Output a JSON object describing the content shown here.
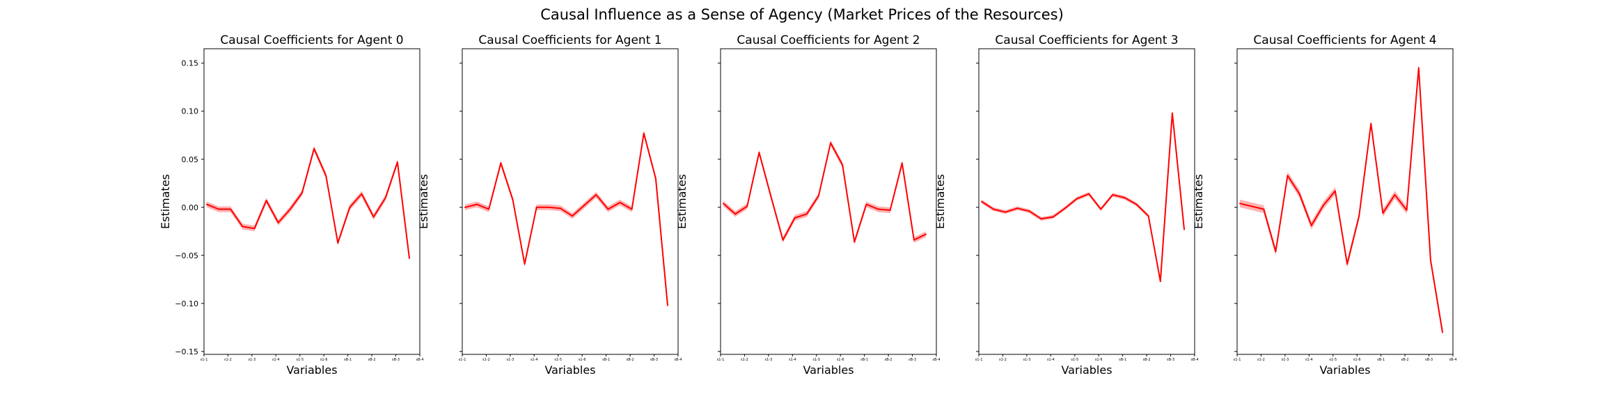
{
  "figure": {
    "title": "Causal Influence as a Sense of Agency (Market Prices of the Resources)"
  },
  "chart_data": [
    {
      "type": "line",
      "title": "Causal Coefficients for Agent 0",
      "xlabel": "Variables",
      "ylabel": "Estimates",
      "ylim": [
        -0.153,
        0.165
      ],
      "yticks": [
        "0.15",
        "0.10",
        "0.05",
        "0.00",
        "−0.05",
        "−0.10",
        "−0.15"
      ],
      "ytick_values": [
        0.15,
        0.1,
        0.05,
        0.0,
        -0.05,
        -0.1,
        -0.15
      ],
      "xtick_labels": [
        "s1-1",
        "s1-2",
        "s1-3",
        "s1-4",
        "s1-5",
        "s1-6",
        "sB-1",
        "sB-2",
        "sB-3",
        "sB-4"
      ],
      "color": "#ff0000",
      "series": [
        {
          "values": [
            0.003,
            -0.002,
            -0.002,
            -0.02,
            -0.022,
            0.007,
            -0.016,
            -0.002,
            0.015,
            0.061,
            0.033,
            -0.037,
            0.0,
            0.014,
            -0.01,
            0.01,
            0.047,
            -0.053
          ],
          "band": 0.003
        }
      ]
    },
    {
      "type": "line",
      "title": "Causal Coefficients for Agent 1",
      "xlabel": "Variables",
      "ylabel": "Estimates",
      "ylim": [
        -0.153,
        0.165
      ],
      "yticks": [],
      "ytick_values": [
        0.15,
        0.1,
        0.05,
        0.0,
        -0.05,
        -0.1,
        -0.15
      ],
      "xtick_labels": [
        "s1-1",
        "s1-2",
        "s1-3",
        "s1-4",
        "s1-5",
        "s1-6",
        "sB-1",
        "sB-2",
        "sB-3",
        "sB-4"
      ],
      "color": "#ff0000",
      "series": [
        {
          "values": [
            0.0,
            0.003,
            -0.002,
            0.046,
            0.008,
            -0.059,
            0.0,
            0.0,
            -0.001,
            -0.009,
            0.002,
            0.013,
            -0.002,
            0.005,
            -0.002,
            0.077,
            0.03,
            -0.102
          ],
          "band": 0.003
        }
      ]
    },
    {
      "type": "line",
      "title": "Causal Coefficients for Agent 2",
      "xlabel": "Variables",
      "ylabel": "Estimates",
      "ylim": [
        -0.153,
        0.165
      ],
      "yticks": [],
      "ytick_values": [
        0.15,
        0.1,
        0.05,
        0.0,
        -0.05,
        -0.1,
        -0.15
      ],
      "xtick_labels": [
        "s1-1",
        "s1-2",
        "s1-3",
        "s1-4",
        "s1-5",
        "s1-6",
        "sB-1",
        "sB-2",
        "sB-3",
        "sB-4"
      ],
      "color": "#ff0000",
      "series": [
        {
          "values": [
            0.004,
            -0.007,
            0.001,
            0.057,
            0.011,
            -0.034,
            -0.011,
            -0.007,
            0.012,
            0.067,
            0.044,
            -0.036,
            0.003,
            -0.002,
            -0.003,
            0.046,
            -0.034,
            -0.028
          ],
          "band": 0.003
        }
      ]
    },
    {
      "type": "line",
      "title": "Causal Coefficients for Agent 3",
      "xlabel": "Variables",
      "ylabel": "Estimates",
      "ylim": [
        -0.153,
        0.165
      ],
      "yticks": [],
      "ytick_values": [
        0.15,
        0.1,
        0.05,
        0.0,
        -0.05,
        -0.1,
        -0.15
      ],
      "xtick_labels": [
        "s1-1",
        "s1-2",
        "s1-3",
        "s1-4",
        "s1-5",
        "s1-6",
        "sB-1",
        "sB-2",
        "sB-3",
        "sB-4"
      ],
      "color": "#ff0000",
      "series": [
        {
          "values": [
            0.006,
            -0.002,
            -0.005,
            -0.001,
            -0.004,
            -0.012,
            -0.01,
            -0.001,
            0.009,
            0.014,
            -0.002,
            0.013,
            0.01,
            0.003,
            -0.009,
            -0.077,
            0.098,
            -0.023
          ],
          "band": 0.002
        }
      ]
    },
    {
      "type": "line",
      "title": "Causal Coefficients for Agent 4",
      "xlabel": "Variables",
      "ylabel": "Estimates",
      "ylim": [
        -0.153,
        0.165
      ],
      "yticks": [],
      "ytick_values": [
        0.15,
        0.1,
        0.05,
        0.0,
        -0.05,
        -0.1,
        -0.15
      ],
      "xtick_labels": [
        "s1-1",
        "s1-2",
        "s1-3",
        "s1-4",
        "s1-5",
        "s1-6",
        "sB-1",
        "sB-2",
        "sB-3",
        "sB-4"
      ],
      "color": "#ff0000",
      "series": [
        {
          "values": [
            0.004,
            0.001,
            -0.002,
            -0.046,
            0.033,
            0.014,
            -0.019,
            0.002,
            0.017,
            -0.059,
            -0.009,
            0.087,
            -0.006,
            0.013,
            -0.003,
            0.145,
            -0.055,
            -0.13
          ],
          "band": 0.004
        }
      ]
    }
  ]
}
